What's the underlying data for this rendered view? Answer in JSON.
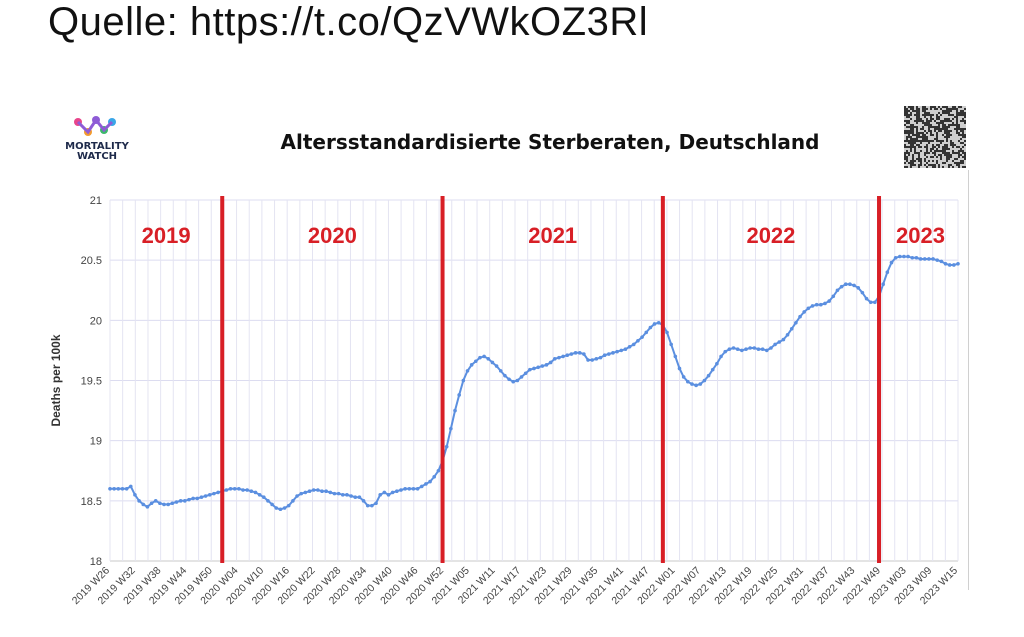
{
  "source_text": "Quelle: https://t.co/QzVWkOZ3Rl",
  "logo": {
    "line1": "MORTALITY",
    "line2": "WATCH"
  },
  "chart_data": {
    "type": "line",
    "title": "Altersstandardisierte Sterberaten, Deutschland",
    "xlabel": "",
    "ylabel": "Deaths per 100k",
    "ylim": [
      18,
      21
    ],
    "yticks": [
      18,
      18.5,
      19,
      19.5,
      20,
      20.5,
      21
    ],
    "ytick_labels": [
      "18",
      "18.5",
      "19",
      "19.5",
      "20",
      "20.5",
      "21"
    ],
    "grid": true,
    "line_color": "#5b8fe0",
    "divider_color": "#d81f26",
    "year_label_color": "#d81f26",
    "xtick_labels": [
      "2019 W26",
      "2019 W32",
      "2019 W38",
      "2019 W44",
      "2019 W50",
      "2020 W04",
      "2020 W10",
      "2020 W16",
      "2020 W22",
      "2020 W28",
      "2020 W34",
      "2020 W40",
      "2020 W46",
      "2020 W52",
      "2021 W05",
      "2021 W11",
      "2021 W17",
      "2021 W23",
      "2021 W29",
      "2021 W35",
      "2021 W41",
      "2021 W47",
      "2022 W01",
      "2022 W07",
      "2022 W13",
      "2022 W19",
      "2022 W25",
      "2022 W31",
      "2022 W37",
      "2022 W43",
      "2022 W49",
      "2023 W03",
      "2023 W09",
      "2023 W15"
    ],
    "year_labels": [
      "2019",
      "2020",
      "2021",
      "2022",
      "2023"
    ],
    "year_dividers_at_week_index": [
      27,
      80,
      133,
      185
    ],
    "series": [
      {
        "values": [
          18.6,
          18.6,
          18.6,
          18.6,
          18.6,
          18.62,
          18.55,
          18.5,
          18.47,
          18.45,
          18.48,
          18.5,
          18.48,
          18.47,
          18.47,
          18.48,
          18.49,
          18.5,
          18.5,
          18.51,
          18.52,
          18.52,
          18.53,
          18.54,
          18.55,
          18.56,
          18.57,
          18.58,
          18.59,
          18.6,
          18.6,
          18.6,
          18.59,
          18.59,
          18.58,
          18.57,
          18.55,
          18.53,
          18.5,
          18.47,
          18.44,
          18.43,
          18.44,
          18.46,
          18.5,
          18.54,
          18.56,
          18.57,
          18.58,
          18.59,
          18.59,
          18.58,
          18.58,
          18.57,
          18.56,
          18.56,
          18.55,
          18.55,
          18.54,
          18.53,
          18.53,
          18.5,
          18.46,
          18.46,
          18.48,
          18.55,
          18.57,
          18.55,
          18.57,
          18.58,
          18.59,
          18.6,
          18.6,
          18.6,
          18.6,
          18.62,
          18.64,
          18.66,
          18.7,
          18.75,
          18.83,
          18.95,
          19.1,
          19.25,
          19.38,
          19.5,
          19.58,
          19.63,
          19.66,
          19.69,
          19.7,
          19.68,
          19.65,
          19.62,
          19.58,
          19.54,
          19.51,
          19.49,
          19.5,
          19.53,
          19.56,
          19.59,
          19.6,
          19.61,
          19.62,
          19.63,
          19.65,
          19.68,
          19.69,
          19.7,
          19.71,
          19.72,
          19.73,
          19.73,
          19.72,
          19.67,
          19.67,
          19.68,
          19.69,
          19.71,
          19.72,
          19.73,
          19.74,
          19.75,
          19.76,
          19.78,
          19.8,
          19.83,
          19.86,
          19.9,
          19.94,
          19.97,
          19.98,
          19.96,
          19.9,
          19.8,
          19.7,
          19.6,
          19.53,
          19.49,
          19.47,
          19.46,
          19.47,
          19.5,
          19.54,
          19.59,
          19.64,
          19.7,
          19.74,
          19.76,
          19.77,
          19.76,
          19.75,
          19.76,
          19.77,
          19.77,
          19.76,
          19.76,
          19.75,
          19.77,
          19.8,
          19.82,
          19.84,
          19.88,
          19.93,
          19.98,
          20.03,
          20.07,
          20.1,
          20.12,
          20.13,
          20.13,
          20.14,
          20.16,
          20.2,
          20.25,
          20.28,
          20.3,
          20.3,
          20.29,
          20.27,
          20.23,
          20.18,
          20.15,
          20.15,
          20.2,
          20.3,
          20.4,
          20.48,
          20.52,
          20.53,
          20.53,
          20.53,
          20.52,
          20.52,
          20.51,
          20.51,
          20.51,
          20.51,
          20.5,
          20.49,
          20.47,
          20.46,
          20.46,
          20.47
        ]
      }
    ]
  }
}
